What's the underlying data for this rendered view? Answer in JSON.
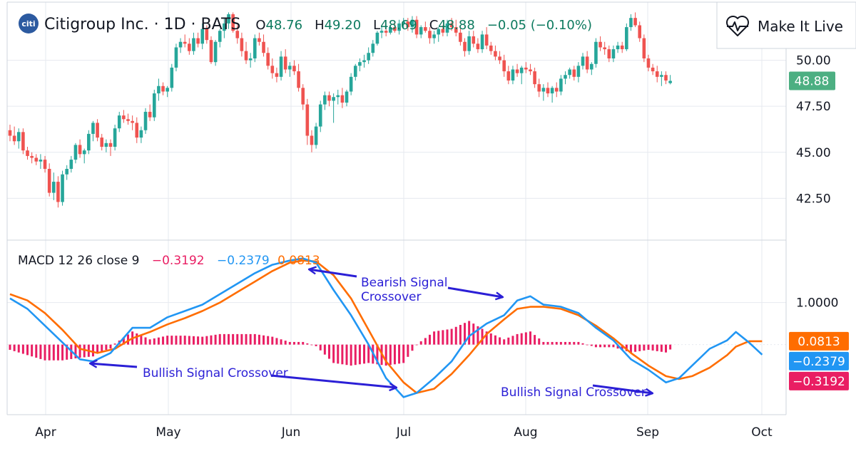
{
  "header": {
    "logo_text": "citi",
    "title": "Citigroup Inc. · 1D · BATS",
    "ohlc": {
      "o_label": "O",
      "o_value": "48.76",
      "h_label": "H",
      "h_value": "49.20",
      "l_label": "L",
      "l_value": "48.69",
      "c_label": "C",
      "c_value": "48.88",
      "change": "−0.05 (−0.10%)"
    }
  },
  "make_live_button": {
    "label": "Make It Live",
    "icon": "heart-pulse-icon"
  },
  "colors": {
    "up": "#26a69a",
    "down": "#ef5350",
    "macd": "#2196f3",
    "signal": "#ff6d00",
    "histogram": "#e91e63",
    "annotation": "#2b1fd6",
    "grid": "#e6e9ef",
    "border": "#cfd4dc",
    "price_label_bg": "#4caf82"
  },
  "macd_legend": {
    "name": "MACD 12 26 close 9",
    "histogram_value": "−0.3192",
    "macd_value": "−0.2379",
    "signal_value": "0.0813"
  },
  "annotations": {
    "bearish": [
      "Bearish Signal",
      "Crossover"
    ],
    "bullish_1": "Bullish Signal Crossover",
    "bullish_2": "Bullish Signal Crossover"
  },
  "chart_data": [
    {
      "type": "candlestick",
      "title": "Citigroup Inc. · 1D · BATS",
      "y_ticks": [
        "50.00",
        "47.50",
        "45.00",
        "42.50"
      ],
      "ylim": [
        40.5,
        52.5
      ],
      "x_ticks": [
        "Apr",
        "May",
        "Jun",
        "Jul",
        "Aug",
        "Sep",
        "Oct"
      ],
      "last_price": "48.88",
      "candles": [
        [
          46.2,
          46.5,
          45.6,
          45.9
        ],
        [
          45.9,
          46.4,
          45.4,
          45.6
        ],
        [
          45.6,
          46.3,
          45.2,
          46.1
        ],
        [
          46.1,
          46.3,
          44.9,
          45.1
        ],
        [
          45.1,
          45.3,
          44.6,
          44.8
        ],
        [
          44.8,
          45.0,
          44.4,
          44.7
        ],
        [
          44.7,
          44.9,
          44.3,
          44.5
        ],
        [
          44.5,
          44.9,
          44.1,
          44.6
        ],
        [
          44.6,
          44.8,
          43.9,
          44.1
        ],
        [
          44.1,
          44.4,
          42.6,
          42.8
        ],
        [
          42.8,
          43.9,
          42.4,
          43.4
        ],
        [
          43.4,
          43.7,
          42.0,
          42.3
        ],
        [
          42.3,
          44.0,
          42.1,
          43.8
        ],
        [
          43.8,
          44.3,
          43.5,
          44.1
        ],
        [
          44.1,
          44.8,
          43.9,
          44.6
        ],
        [
          44.6,
          45.5,
          44.4,
          45.4
        ],
        [
          45.4,
          45.7,
          44.7,
          44.9
        ],
        [
          44.9,
          45.2,
          44.4,
          45.1
        ],
        [
          45.1,
          46.2,
          44.9,
          46.0
        ],
        [
          46.0,
          46.7,
          45.6,
          46.6
        ],
        [
          46.6,
          46.8,
          45.6,
          45.8
        ],
        [
          45.8,
          46.0,
          45.1,
          45.3
        ],
        [
          45.3,
          45.7,
          45.0,
          45.5
        ],
        [
          45.5,
          45.7,
          44.8,
          45.3
        ],
        [
          45.3,
          46.5,
          45.1,
          46.3
        ],
        [
          46.3,
          47.2,
          46.1,
          47.0
        ],
        [
          47.0,
          47.3,
          46.6,
          46.8
        ],
        [
          46.8,
          47.1,
          46.5,
          46.7
        ],
        [
          46.7,
          47.0,
          46.2,
          46.6
        ],
        [
          46.6,
          46.9,
          45.5,
          45.8
        ],
        [
          45.8,
          46.4,
          45.5,
          46.2
        ],
        [
          46.2,
          47.4,
          46.0,
          47.2
        ],
        [
          47.2,
          47.6,
          46.7,
          46.9
        ],
        [
          46.9,
          48.4,
          46.7,
          48.2
        ],
        [
          48.2,
          49.0,
          47.8,
          48.6
        ],
        [
          48.6,
          48.8,
          48.1,
          48.3
        ],
        [
          48.3,
          48.6,
          48.0,
          48.5
        ],
        [
          48.5,
          49.8,
          48.3,
          49.6
        ],
        [
          49.6,
          50.9,
          49.4,
          50.7
        ],
        [
          50.7,
          51.2,
          50.4,
          51.0
        ],
        [
          51.0,
          51.4,
          50.7,
          50.9
        ],
        [
          50.9,
          51.2,
          50.3,
          50.5
        ],
        [
          50.5,
          51.5,
          50.3,
          51.2
        ],
        [
          51.2,
          51.5,
          50.7,
          50.9
        ],
        [
          50.9,
          52.0,
          50.6,
          51.7
        ],
        [
          51.7,
          51.9,
          50.9,
          51.1
        ],
        [
          51.1,
          51.3,
          49.8,
          49.9
        ],
        [
          49.9,
          51.1,
          49.7,
          51.0
        ],
        [
          51.0,
          51.7,
          50.7,
          51.6
        ],
        [
          51.6,
          52.3,
          51.2,
          52.0
        ],
        [
          52.0,
          52.6,
          51.7,
          52.5
        ],
        [
          52.5,
          52.6,
          51.5,
          51.6
        ],
        [
          51.6,
          51.9,
          50.9,
          51.2
        ],
        [
          51.2,
          51.5,
          50.2,
          50.5
        ],
        [
          50.5,
          51.0,
          49.8,
          50.0
        ],
        [
          50.0,
          50.4,
          49.6,
          50.1
        ],
        [
          50.1,
          51.4,
          49.9,
          51.2
        ],
        [
          51.2,
          51.5,
          50.8,
          51.0
        ],
        [
          51.0,
          51.4,
          50.2,
          50.4
        ],
        [
          50.4,
          50.7,
          49.5,
          49.7
        ],
        [
          49.7,
          50.1,
          49.0,
          49.3
        ],
        [
          49.3,
          49.6,
          48.8,
          49.1
        ],
        [
          49.1,
          50.5,
          48.9,
          50.2
        ],
        [
          50.2,
          50.6,
          49.3,
          49.5
        ],
        [
          49.5,
          49.9,
          49.1,
          49.7
        ],
        [
          49.7,
          50.0,
          49.2,
          49.4
        ],
        [
          49.4,
          49.8,
          48.3,
          48.5
        ],
        [
          48.5,
          48.7,
          47.3,
          47.6
        ],
        [
          47.6,
          47.9,
          45.4,
          45.9
        ],
        [
          45.9,
          46.2,
          45.0,
          45.4
        ],
        [
          45.4,
          46.6,
          45.2,
          46.4
        ],
        [
          46.4,
          47.8,
          46.1,
          47.6
        ],
        [
          47.6,
          48.3,
          47.3,
          48.1
        ],
        [
          48.1,
          48.3,
          47.5,
          47.8
        ],
        [
          47.8,
          48.2,
          46.6,
          48.0
        ],
        [
          48.0,
          48.4,
          47.6,
          48.1
        ],
        [
          48.1,
          48.5,
          47.4,
          47.7
        ],
        [
          47.7,
          48.4,
          47.5,
          48.3
        ],
        [
          48.3,
          49.3,
          48.1,
          49.1
        ],
        [
          49.1,
          49.8,
          48.9,
          49.7
        ],
        [
          49.7,
          50.1,
          49.4,
          49.9
        ],
        [
          49.9,
          50.3,
          49.6,
          50.0
        ],
        [
          50.0,
          50.7,
          49.8,
          50.4
        ],
        [
          50.4,
          51.1,
          50.2,
          50.9
        ],
        [
          50.9,
          51.6,
          50.8,
          51.5
        ],
        [
          51.5,
          51.9,
          51.2,
          51.6
        ],
        [
          51.6,
          51.8,
          51.3,
          51.5
        ],
        [
          51.5,
          51.9,
          51.4,
          51.8
        ],
        [
          51.8,
          52.0,
          51.5,
          51.6
        ],
        [
          51.6,
          52.2,
          51.4,
          52.0
        ],
        [
          52.0,
          52.3,
          51.7,
          52.1
        ],
        [
          52.1,
          52.3,
          51.6,
          51.8
        ],
        [
          51.8,
          52.4,
          51.5,
          52.2
        ],
        [
          52.2,
          52.4,
          51.2,
          51.4
        ],
        [
          51.4,
          51.9,
          51.2,
          51.8
        ],
        [
          51.8,
          52.1,
          51.5,
          51.6
        ],
        [
          51.6,
          51.8,
          50.9,
          51.2
        ],
        [
          51.2,
          51.6,
          50.9,
          51.4
        ],
        [
          51.4,
          51.8,
          51.0,
          51.7
        ],
        [
          51.7,
          51.9,
          51.3,
          51.5
        ],
        [
          51.5,
          52.2,
          51.3,
          52.0
        ],
        [
          52.0,
          52.3,
          51.6,
          51.8
        ],
        [
          51.8,
          52.2,
          51.3,
          51.5
        ],
        [
          51.5,
          51.8,
          50.8,
          51.0
        ],
        [
          51.0,
          51.2,
          50.2,
          50.5
        ],
        [
          50.5,
          51.6,
          50.3,
          51.3
        ],
        [
          51.3,
          51.6,
          50.7,
          50.9
        ],
        [
          50.9,
          51.2,
          50.4,
          50.6
        ],
        [
          50.6,
          51.6,
          50.4,
          51.4
        ],
        [
          51.4,
          51.8,
          50.6,
          50.8
        ],
        [
          50.8,
          51.0,
          50.3,
          50.5
        ],
        [
          50.5,
          50.8,
          50.0,
          50.2
        ],
        [
          50.2,
          50.5,
          49.8,
          50.0
        ],
        [
          50.0,
          50.3,
          49.1,
          49.4
        ],
        [
          49.4,
          49.7,
          48.7,
          48.9
        ],
        [
          48.9,
          49.7,
          48.7,
          49.5
        ],
        [
          49.5,
          49.8,
          49.1,
          49.3
        ],
        [
          49.3,
          49.7,
          48.7,
          49.6
        ],
        [
          49.6,
          49.9,
          49.3,
          49.5
        ],
        [
          49.5,
          49.8,
          49.2,
          49.4
        ],
        [
          49.4,
          49.6,
          48.5,
          48.7
        ],
        [
          48.7,
          49.0,
          48.0,
          48.3
        ],
        [
          48.3,
          48.7,
          47.8,
          48.5
        ],
        [
          48.5,
          48.8,
          48.0,
          48.2
        ],
        [
          48.2,
          48.6,
          47.7,
          48.5
        ],
        [
          48.5,
          48.8,
          48.0,
          48.3
        ],
        [
          48.3,
          49.2,
          48.1,
          49.0
        ],
        [
          49.0,
          49.4,
          48.7,
          49.2
        ],
        [
          49.2,
          49.6,
          49.0,
          49.5
        ],
        [
          49.5,
          49.7,
          48.9,
          49.1
        ],
        [
          49.1,
          49.9,
          48.8,
          49.7
        ],
        [
          49.7,
          50.4,
          49.5,
          50.2
        ],
        [
          50.2,
          50.5,
          49.3,
          49.5
        ],
        [
          49.5,
          49.9,
          49.2,
          49.8
        ],
        [
          49.8,
          51.2,
          49.6,
          51.0
        ],
        [
          51.0,
          51.3,
          50.5,
          50.7
        ],
        [
          50.7,
          51.0,
          50.3,
          50.6
        ],
        [
          50.6,
          50.8,
          49.9,
          50.1
        ],
        [
          50.1,
          50.8,
          49.9,
          50.6
        ],
        [
          50.6,
          51.0,
          50.4,
          50.8
        ],
        [
          50.8,
          51.0,
          50.4,
          50.6
        ],
        [
          50.6,
          52.0,
          50.5,
          51.8
        ],
        [
          51.8,
          52.5,
          51.6,
          52.3
        ],
        [
          52.3,
          52.6,
          51.8,
          51.9
        ],
        [
          51.9,
          52.1,
          51.0,
          51.2
        ],
        [
          51.2,
          51.4,
          49.9,
          50.1
        ],
        [
          50.1,
          50.3,
          49.4,
          49.6
        ],
        [
          49.6,
          49.8,
          49.2,
          49.4
        ],
        [
          49.4,
          49.7,
          48.8,
          49.1
        ],
        [
          49.1,
          49.4,
          48.6,
          49.2
        ],
        [
          49.2,
          49.4,
          48.7,
          48.9
        ],
        [
          48.76,
          49.2,
          48.69,
          48.88
        ]
      ]
    },
    {
      "type": "macd",
      "title": "MACD 12 26 close 9",
      "y_ticks": [
        "1.0000"
      ],
      "ylim": [
        -1.6,
        2.3
      ],
      "current_values": {
        "histogram": -0.3192,
        "macd": -0.2379,
        "signal": 0.0813
      },
      "macd_line": [
        [
          0,
          1.1
        ],
        [
          4,
          0.85
        ],
        [
          8,
          0.45
        ],
        [
          12,
          0.05
        ],
        [
          16,
          -0.35
        ],
        [
          19,
          -0.4
        ],
        [
          23,
          -0.2
        ],
        [
          28,
          0.4
        ],
        [
          32,
          0.4
        ],
        [
          36,
          0.65
        ],
        [
          40,
          0.8
        ],
        [
          44,
          0.95
        ],
        [
          48,
          1.2
        ],
        [
          52,
          1.45
        ],
        [
          56,
          1.7
        ],
        [
          60,
          1.9
        ],
        [
          64,
          2.0
        ],
        [
          67,
          2.05
        ],
        [
          70,
          1.95
        ],
        [
          74,
          1.3
        ],
        [
          78,
          0.7
        ],
        [
          82,
          0.0
        ],
        [
          86,
          -0.8
        ],
        [
          90,
          -1.25
        ],
        [
          93,
          -1.15
        ],
        [
          97,
          -0.8
        ],
        [
          101,
          -0.4
        ],
        [
          105,
          0.2
        ],
        [
          109,
          0.5
        ],
        [
          113,
          0.7
        ],
        [
          116,
          1.05
        ],
        [
          119,
          1.15
        ],
        [
          122,
          0.95
        ],
        [
          126,
          0.9
        ],
        [
          130,
          0.75
        ],
        [
          134,
          0.4
        ],
        [
          138,
          0.1
        ],
        [
          142,
          -0.35
        ],
        [
          146,
          -0.6
        ],
        [
          150,
          -0.9
        ],
        [
          153,
          -0.8
        ],
        [
          156,
          -0.5
        ],
        [
          160,
          -0.1
        ],
        [
          164,
          0.1
        ],
        [
          166,
          0.3
        ],
        [
          169,
          0.05
        ],
        [
          172,
          -0.24
        ]
      ],
      "signal_line": [
        [
          0,
          1.2
        ],
        [
          4,
          1.05
        ],
        [
          8,
          0.75
        ],
        [
          12,
          0.35
        ],
        [
          16,
          -0.1
        ],
        [
          20,
          -0.2
        ],
        [
          24,
          -0.1
        ],
        [
          28,
          0.15
        ],
        [
          32,
          0.3
        ],
        [
          36,
          0.48
        ],
        [
          40,
          0.63
        ],
        [
          44,
          0.8
        ],
        [
          48,
          1.0
        ],
        [
          52,
          1.25
        ],
        [
          56,
          1.5
        ],
        [
          60,
          1.75
        ],
        [
          64,
          1.95
        ],
        [
          67,
          2.0
        ],
        [
          70,
          1.98
        ],
        [
          74,
          1.65
        ],
        [
          78,
          1.1
        ],
        [
          82,
          0.35
        ],
        [
          86,
          -0.4
        ],
        [
          90,
          -0.9
        ],
        [
          93,
          -1.15
        ],
        [
          97,
          -1.05
        ],
        [
          101,
          -0.7
        ],
        [
          105,
          -0.25
        ],
        [
          109,
          0.25
        ],
        [
          113,
          0.6
        ],
        [
          116,
          0.85
        ],
        [
          119,
          0.9
        ],
        [
          122,
          0.9
        ],
        [
          126,
          0.85
        ],
        [
          130,
          0.7
        ],
        [
          134,
          0.45
        ],
        [
          138,
          0.15
        ],
        [
          142,
          -0.2
        ],
        [
          146,
          -0.5
        ],
        [
          150,
          -0.75
        ],
        [
          153,
          -0.82
        ],
        [
          156,
          -0.75
        ],
        [
          160,
          -0.55
        ],
        [
          164,
          -0.25
        ],
        [
          166,
          -0.05
        ],
        [
          169,
          0.08
        ],
        [
          172,
          0.08
        ]
      ],
      "annotation_labels": [
        "Bearish Signal",
        "Crossover",
        "Bullish Signal Crossover",
        "Bullish Signal Crossover"
      ]
    }
  ]
}
